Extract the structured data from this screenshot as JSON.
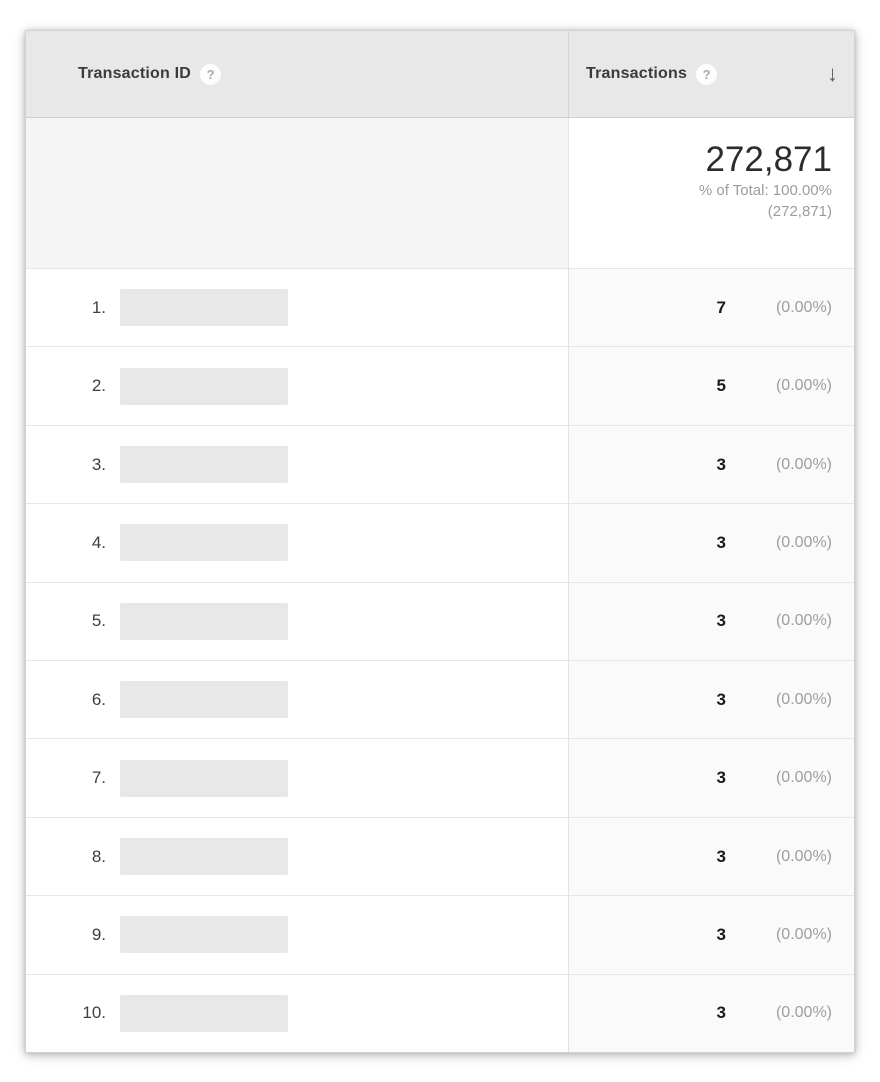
{
  "table": {
    "columns": [
      {
        "label": "Transaction ID",
        "help_icon": "?"
      },
      {
        "label": "Transactions",
        "help_icon": "?",
        "sort_icon": "↓"
      }
    ],
    "summary": {
      "total": "272,871",
      "percent_of_total": "% of Total: 100.00%",
      "total_paren": "(272,871)"
    },
    "rows": [
      {
        "index": "1.",
        "value": "7",
        "percent": "(0.00%)"
      },
      {
        "index": "2.",
        "value": "5",
        "percent": "(0.00%)"
      },
      {
        "index": "3.",
        "value": "3",
        "percent": "(0.00%)"
      },
      {
        "index": "4.",
        "value": "3",
        "percent": "(0.00%)"
      },
      {
        "index": "5.",
        "value": "3",
        "percent": "(0.00%)"
      },
      {
        "index": "6.",
        "value": "3",
        "percent": "(0.00%)"
      },
      {
        "index": "7.",
        "value": "3",
        "percent": "(0.00%)"
      },
      {
        "index": "8.",
        "value": "3",
        "percent": "(0.00%)"
      },
      {
        "index": "9.",
        "value": "3",
        "percent": "(0.00%)"
      },
      {
        "index": "10.",
        "value": "3",
        "percent": "(0.00%)"
      }
    ]
  },
  "colors": {
    "header_bg": "#e8e8e8",
    "summary_left_bg": "#f5f5f5",
    "metric_cell_bg": "#fafafa",
    "header_border": "#cfcfcf",
    "row_border": "#e6e6e6",
    "value_text": "#1a1a1a",
    "muted_text": "#9e9e9e",
    "redacted_box_bg": "#e8e8e8"
  }
}
